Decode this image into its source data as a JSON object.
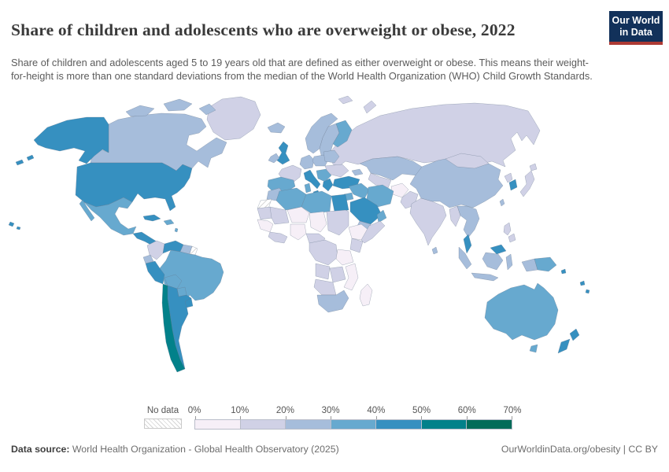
{
  "header": {
    "title": "Share of children and adolescents who are overweight or obese, 2022",
    "subtitle": "Share of children and adolescents aged 5 to 19 years old that are defined as either overweight or obese. This means their weight-for-height is more than one standard deviations from the median of the World Health Organization (WHO) Child Growth Standards.",
    "logo": {
      "line1": "Our World",
      "line2": "in Data",
      "bg": "#12315a",
      "stripe": "#ad3a34"
    }
  },
  "legend": {
    "no_data_label": "No data",
    "ticks": [
      "0%",
      "10%",
      "20%",
      "30%",
      "40%",
      "50%",
      "60%",
      "70%"
    ],
    "bin_colors": [
      "#f6eff7",
      "#d0d1e6",
      "#a6bddb",
      "#67a9cf",
      "#3690c0",
      "#02818a",
      "#016c59"
    ]
  },
  "map": {
    "ocean": "#ffffff",
    "border_color": "#64758a"
  },
  "footer": {
    "source_label": "Data source:",
    "source_text": " World Health Organization - Global Health Observatory (2025)",
    "right_text": "OurWorldinData.org/obesity | CC BY"
  },
  "chart_data": {
    "type": "heatmap",
    "subtype": "choropleth-world-map",
    "title": "Share of children and adolescents who are overweight or obese, 2022",
    "unit": "% of children and adolescents aged 5-19",
    "bin_edges_percent": [
      0,
      10,
      20,
      30,
      40,
      50,
      60,
      70
    ],
    "bin_labels": [
      "0-10%",
      "10-20%",
      "20-30%",
      "30-40%",
      "40-50%",
      "50-60%",
      "60-70%"
    ],
    "no_data_regions": [
      "western-sahara",
      "french-guiana"
    ],
    "regions": {
      "greenland": 1,
      "canada": 2,
      "usa": 4,
      "mexico": 3,
      "central-america": 4,
      "cuba": 4,
      "hispaniola": 3,
      "caribbean": 3,
      "colombia": 1,
      "venezuela": 4,
      "guyana-suriname": 2,
      "french-guiana": "nodata",
      "ecuador": 2,
      "peru": 4,
      "brazil": 3,
      "bolivia": 3,
      "paraguay": 3,
      "uruguay": 4,
      "chile": 5,
      "argentina": 4,
      "iceland": 2,
      "norway": 2,
      "sweden": 2,
      "finland": 3,
      "denmark": 2,
      "uk": 4,
      "ireland": 2,
      "france": 1,
      "iberia": 3,
      "germany": 2,
      "poland": 2,
      "baltics": 2,
      "ukraine": 1,
      "balkans": 3,
      "greece": 4,
      "italy": 4,
      "turkey": 4,
      "caucasus": 2,
      "russia": 1,
      "kazakhstan": 2,
      "central-asia": 1,
      "afghanistan": 0,
      "pakistan": 1,
      "iraq-syria": 3,
      "jordan-israel": 3,
      "iran": 3,
      "saudi-arabia": 4,
      "yemen": 2,
      "oman": 3,
      "egypt": 4,
      "india": 1,
      "sri-lanka": 2,
      "china": 2,
      "mongolia": 1,
      "north-korea": 1,
      "south-korea": 4,
      "japan": 1,
      "taiwan": 2,
      "myanmar": 1,
      "indochina": 2,
      "malaysia": 4,
      "sumatra": 2,
      "java": 2,
      "borneo": 2,
      "sulawesi": 2,
      "west-papua": 2,
      "papua-new-guinea": 3,
      "philippines": 1,
      "australia": 3,
      "new-zealand": 4,
      "pacific-islands": 4,
      "morocco": 2,
      "western-sahara": "nodata",
      "algeria": 3,
      "tunisia": 3,
      "libya": 3,
      "mauritania": 1,
      "mali": 1,
      "niger": 0,
      "chad": 0,
      "sudan": 1,
      "senegal-guinea": 0,
      "west-africa": 1,
      "nigeria": 0,
      "cameroon": 1,
      "ethiopia": 0,
      "somalia": 1,
      "kenya": 1,
      "drc": 1,
      "tanzania": 0,
      "angola": 1,
      "zambia-zimbabwe": 1,
      "mozambique": 0,
      "namibia-botswana": 1,
      "south-africa": 2,
      "madagascar": 0
    }
  }
}
